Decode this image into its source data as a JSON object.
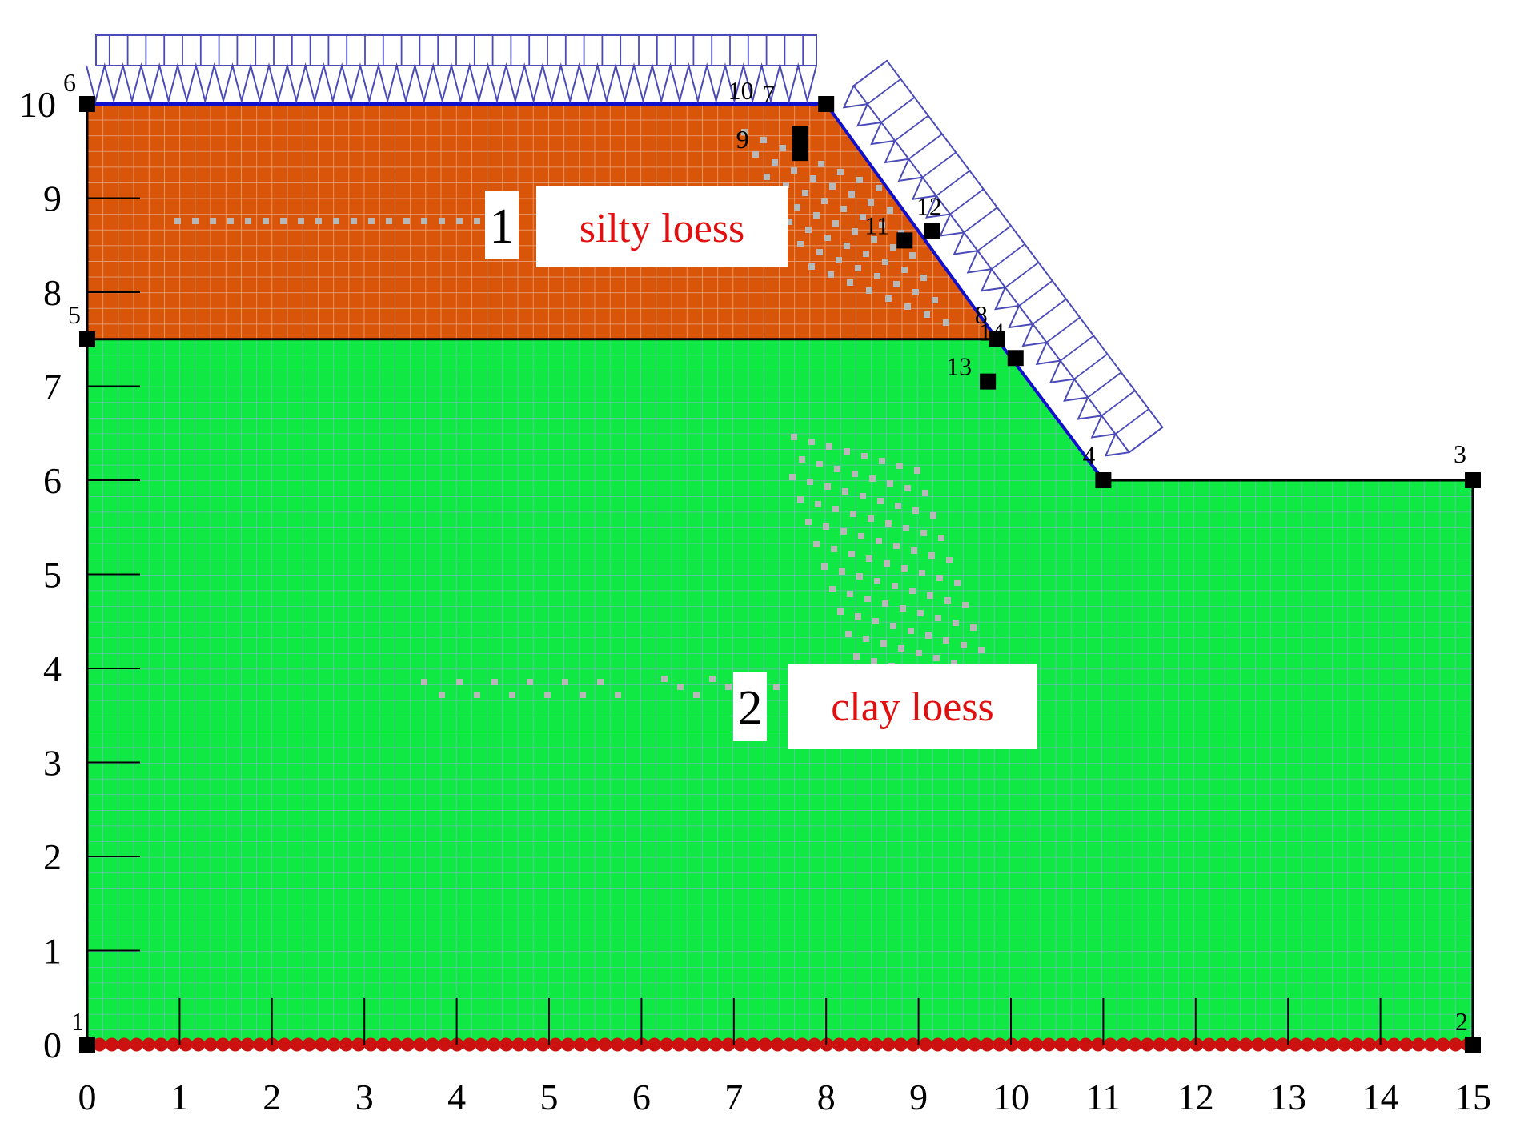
{
  "colors": {
    "silty_loess": "#d9550a",
    "clay_loess": "#10e843",
    "mesh_on_brown": "#e8a27a",
    "mesh_on_green": "#7fb7c9",
    "load_arrows": "#4a4ab8",
    "slope_line": "#1010cc",
    "boundary": "#000000",
    "fixed_support": "#cc1111",
    "label_text": "#e01010",
    "refine_dots": "#b8b8b8"
  },
  "axes": {
    "x_ticks": [
      "0",
      "1",
      "2",
      "3",
      "4",
      "5",
      "6",
      "7",
      "8",
      "9",
      "10",
      "11",
      "12",
      "13",
      "14",
      "15"
    ],
    "y_ticks": [
      "0",
      "1",
      "2",
      "3",
      "4",
      "5",
      "6",
      "7",
      "8",
      "9",
      "10"
    ],
    "x_range": [
      0,
      15
    ],
    "y_range": [
      0,
      10
    ]
  },
  "geometry_points": [
    {
      "id": "1",
      "x": 0,
      "y": 0
    },
    {
      "id": "2",
      "x": 15,
      "y": 0
    },
    {
      "id": "3",
      "x": 15,
      "y": 6
    },
    {
      "id": "4",
      "x": 11,
      "y": 6
    },
    {
      "id": "5",
      "x": 0,
      "y": 7.5
    },
    {
      "id": "6",
      "x": 0,
      "y": 10
    },
    {
      "id": "7",
      "x": 8,
      "y": 10
    },
    {
      "id": "8",
      "x": 9.85,
      "y": 7.5
    },
    {
      "id": "9",
      "x": 7.25,
      "y": 9.65
    },
    {
      "id": "10",
      "x": 7.25,
      "y": 10.05
    },
    {
      "id": "11",
      "x": 8.85,
      "y": 8.55
    },
    {
      "id": "12",
      "x": 9.15,
      "y": 8.65
    },
    {
      "id": "13",
      "x": 9.75,
      "y": 7.05
    },
    {
      "id": "14",
      "x": 10.05,
      "y": 7.3
    }
  ],
  "regions": [
    {
      "number": "1",
      "name": "silty loess"
    },
    {
      "number": "2",
      "name": "clay loess"
    }
  ]
}
